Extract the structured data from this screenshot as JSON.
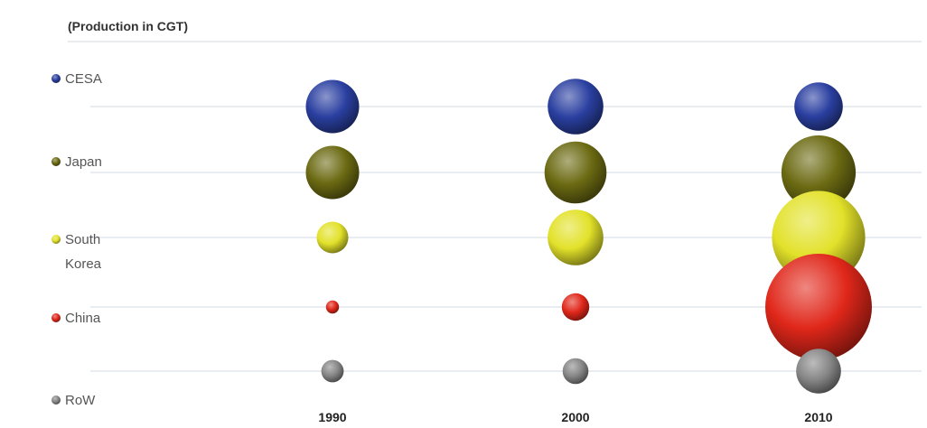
{
  "chart_data": {
    "type": "scatter",
    "title": "(Production in CGT)",
    "x": [
      "1990",
      "2000",
      "2010"
    ],
    "series": [
      {
        "name": "CESA",
        "color": "#2a3fa0",
        "values": [
          3.4,
          3.7,
          2.8
        ]
      },
      {
        "name": "Japan",
        "color": "#6b6a12",
        "values": [
          3.4,
          4.6,
          6.6
        ]
      },
      {
        "name": "South Korea",
        "color": "#e2e12a",
        "values": [
          1.2,
          3.7,
          10.4
        ]
      },
      {
        "name": "China",
        "color": "#e0271a",
        "values": [
          0.2,
          0.9,
          13.6
        ]
      },
      {
        "name": "RoW",
        "color": "#868686",
        "values": [
          0.6,
          0.8,
          2.4
        ]
      }
    ],
    "legend": "left",
    "grid": true
  }
}
